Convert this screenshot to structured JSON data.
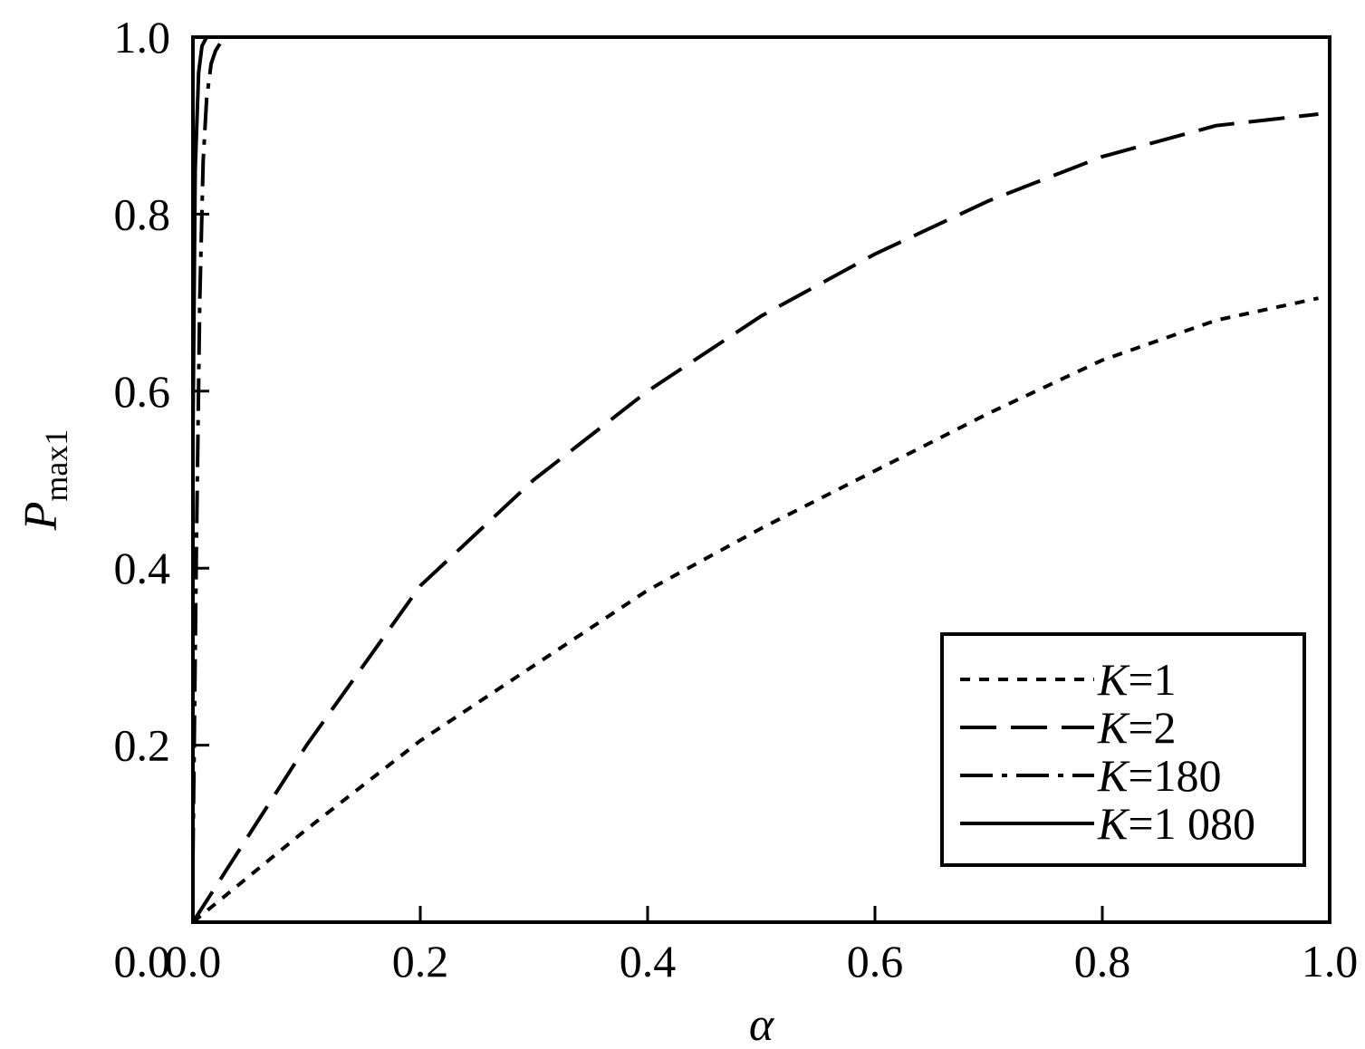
{
  "chart_data": {
    "type": "line",
    "xlabel": "α",
    "ylabel_main": "P",
    "ylabel_sub": "max1",
    "xlim": [
      0.0,
      1.0
    ],
    "ylim": [
      0.0,
      1.0
    ],
    "xticks": [
      "0.0",
      "0.2",
      "0.4",
      "0.6",
      "0.8",
      "1.0"
    ],
    "yticks": [
      "0.2",
      "0.4",
      "0.6",
      "0.8",
      "1.0"
    ],
    "grid": false,
    "legend_position": "bottom-right",
    "series": [
      {
        "name": "K=1",
        "name_var": "K",
        "name_val": "=1",
        "style": "dotted",
        "x": [
          0.0,
          0.1,
          0.2,
          0.3,
          0.4,
          0.5,
          0.6,
          0.7,
          0.8,
          0.9,
          0.99
        ],
        "y": [
          0.0,
          0.105,
          0.205,
          0.29,
          0.375,
          0.445,
          0.51,
          0.575,
          0.635,
          0.68,
          0.705
        ]
      },
      {
        "name": "K=2",
        "name_var": "K",
        "name_val": "=2",
        "style": "dashed",
        "x": [
          0.0,
          0.1,
          0.2,
          0.3,
          0.4,
          0.5,
          0.6,
          0.7,
          0.8,
          0.9,
          0.99
        ],
        "y": [
          0.0,
          0.2,
          0.38,
          0.5,
          0.6,
          0.685,
          0.755,
          0.815,
          0.865,
          0.9,
          0.913
        ]
      },
      {
        "name": "K=180",
        "name_var": "K",
        "name_val": "=180",
        "style": "dashdot",
        "x": [
          0.0,
          0.003,
          0.006,
          0.009,
          0.012,
          0.016,
          0.02,
          0.025,
          0.03,
          1.0
        ],
        "y": [
          0.07,
          0.42,
          0.7,
          0.86,
          0.93,
          0.97,
          0.985,
          0.995,
          1.0,
          1.0
        ]
      },
      {
        "name": "K=1 080",
        "name_var": "K",
        "name_val": "=1 080",
        "style": "solid",
        "x": [
          0.0,
          0.002,
          0.005,
          0.008,
          0.012,
          1.0
        ],
        "y": [
          0.55,
          0.85,
          0.96,
          0.99,
          1.0,
          1.0
        ]
      }
    ]
  }
}
